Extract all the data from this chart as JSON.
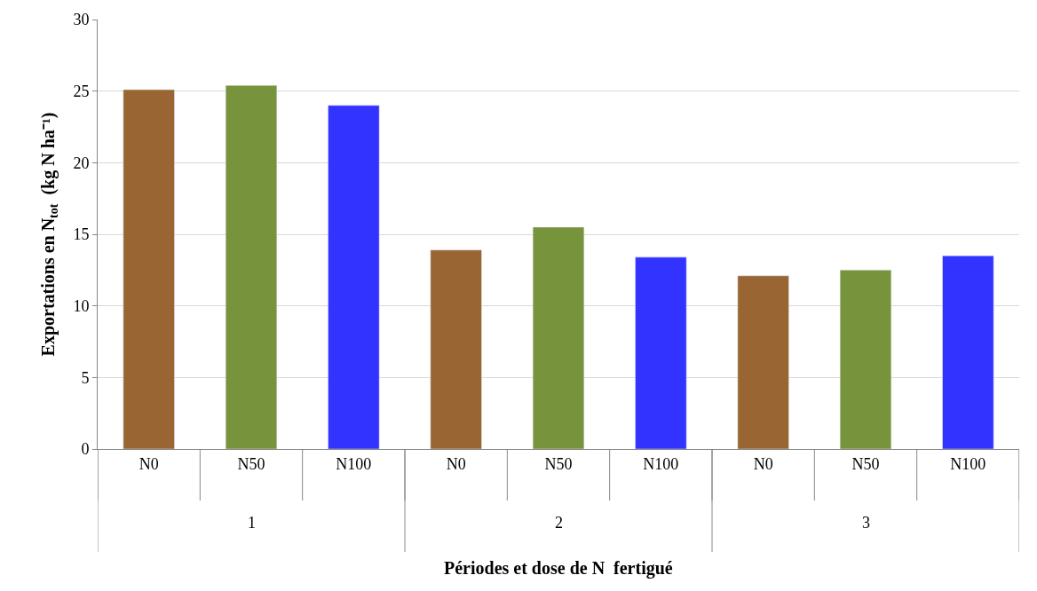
{
  "chart_data": {
    "type": "bar",
    "xlabel": "Périodes et dose de N  fertigué",
    "ylabel": "Exportations en N$_{tot}$  (kg N ha⁻¹)",
    "categories": [
      "N0",
      "N50",
      "N100",
      "N0",
      "N50",
      "N100",
      "N0",
      "N50",
      "N100"
    ],
    "values": [
      25.1,
      25.4,
      24.0,
      13.9,
      15.5,
      13.4,
      12.1,
      12.5,
      13.5
    ],
    "colors": [
      "#996633",
      "#77933c",
      "#3333ff",
      "#996633",
      "#77933c",
      "#3333ff",
      "#996633",
      "#77933c",
      "#3333ff"
    ],
    "annotations": [
      "1",
      "2",
      "3"
    ],
    "ylim": [
      0,
      30
    ],
    "yticks": [
      0,
      5,
      10,
      15,
      20,
      25,
      30
    ],
    "grid": "y"
  }
}
